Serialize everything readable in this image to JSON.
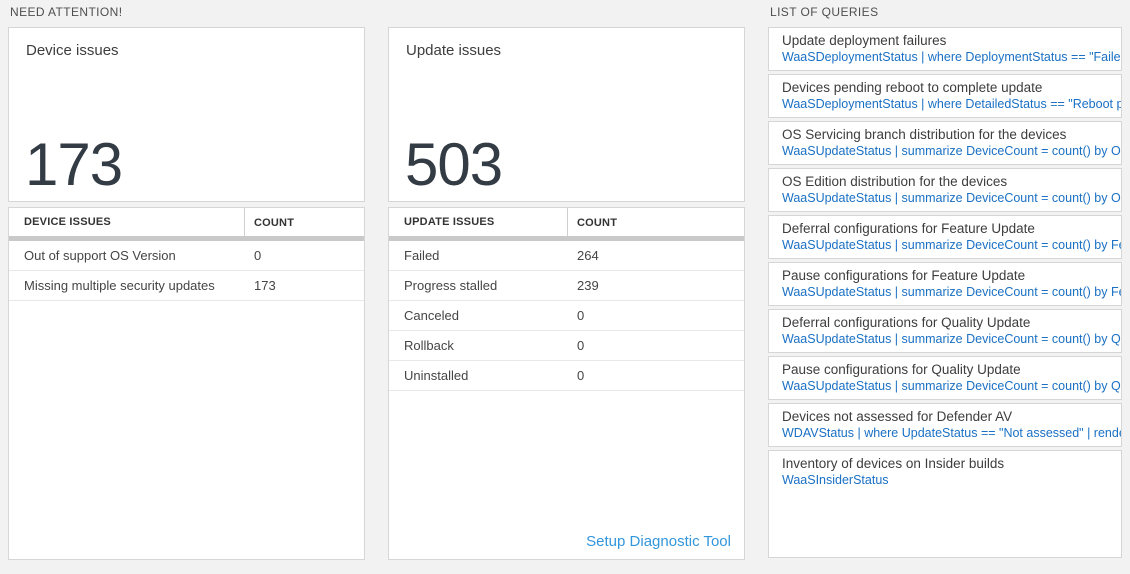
{
  "sections": {
    "need_attention_title": "NEED ATTENTION!",
    "queries_title": "LIST OF QUERIES"
  },
  "device_card": {
    "title": "Device issues",
    "count": "173"
  },
  "update_card": {
    "title": "Update issues",
    "count": "503"
  },
  "device_table": {
    "headers": [
      "DEVICE ISSUES",
      "COUNT"
    ],
    "rows": [
      {
        "label": "Out of support OS Version",
        "value": "0"
      },
      {
        "label": "Missing multiple security updates",
        "value": "173"
      }
    ]
  },
  "update_table": {
    "headers": [
      "UPDATE ISSUES",
      "COUNT"
    ],
    "rows": [
      {
        "label": "Failed",
        "value": "264"
      },
      {
        "label": "Progress stalled",
        "value": "239"
      },
      {
        "label": "Canceled",
        "value": "0"
      },
      {
        "label": "Rollback",
        "value": "0"
      },
      {
        "label": "Uninstalled",
        "value": "0"
      }
    ],
    "footer_link": "Setup Diagnostic Tool"
  },
  "queries": [
    {
      "title": "Update deployment failures",
      "query": "WaaSDeploymentStatus | where DeploymentStatus == \"Failed\" |..."
    },
    {
      "title": "Devices pending reboot to complete update",
      "query": "WaaSDeploymentStatus | where DetailedStatus == \"Reboot pend..."
    },
    {
      "title": "OS Servicing branch distribution for the devices",
      "query": "WaaSUpdateStatus | summarize DeviceCount = count() by OSSer..."
    },
    {
      "title": "OS Edition distribution for the devices",
      "query": "WaaSUpdateStatus | summarize DeviceCount = count() by OSEdit..."
    },
    {
      "title": "Deferral configurations for Feature Update",
      "query": "WaaSUpdateStatus | summarize DeviceCount = count() by Featur..."
    },
    {
      "title": "Pause configurations for Feature Update",
      "query": "WaaSUpdateStatus | summarize DeviceCount = count() by Featur..."
    },
    {
      "title": "Deferral configurations for Quality Update",
      "query": "WaaSUpdateStatus | summarize DeviceCount = count() by Qualit..."
    },
    {
      "title": "Pause configurations for Quality Update",
      "query": "WaaSUpdateStatus | summarize DeviceCount = count() by Qualit..."
    },
    {
      "title": "Devices not assessed for Defender AV",
      "query": "WDAVStatus | where UpdateStatus == \"Not assessed\" | render ta..."
    },
    {
      "title": "Inventory of devices on Insider builds",
      "query": "WaaSInsiderStatus"
    }
  ],
  "colors": {
    "page_background": "#f2f2f2",
    "tile_border": "#d6d6d6",
    "query_link_blue": "#1a70c4",
    "footer_link_blue": "#3296dc",
    "big_number": "#333b44",
    "thick_bar_gray": "#c9c9c9"
  }
}
